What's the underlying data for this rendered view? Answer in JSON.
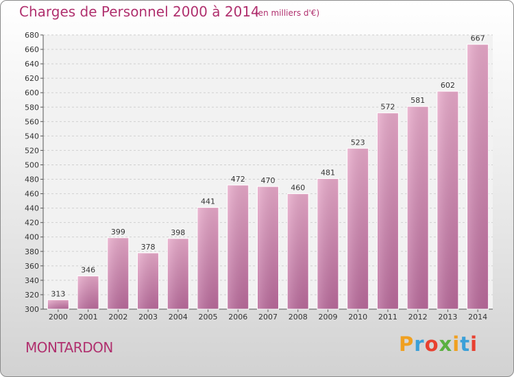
{
  "header": {
    "title": "Charges de Personnel 2000 à 2014",
    "subtitle": "(en milliers d'€)"
  },
  "footer": {
    "city": "MONTARDON",
    "logo_letters": [
      "P",
      "r",
      "o",
      "x",
      "i",
      "t",
      "i"
    ],
    "logo_colors": [
      "#f0a020",
      "#3aa0d8",
      "#e84030",
      "#5ab040",
      "#f0a020",
      "#3aa0d8",
      "#e84030"
    ]
  },
  "chart_data": {
    "type": "bar",
    "title": "Charges de Personnel 2000 à 2014",
    "subtitle": "(en milliers d'€)",
    "categories": [
      "2000",
      "2001",
      "2002",
      "2003",
      "2004",
      "2005",
      "2006",
      "2007",
      "2008",
      "2009",
      "2010",
      "2011",
      "2012",
      "2013",
      "2014"
    ],
    "values": [
      313,
      346,
      399,
      378,
      398,
      441,
      472,
      470,
      460,
      481,
      523,
      572,
      581,
      602,
      667
    ],
    "ylim": [
      300,
      680
    ],
    "ytick_step": 20,
    "grid": true,
    "bar_color": "#d982b0"
  }
}
